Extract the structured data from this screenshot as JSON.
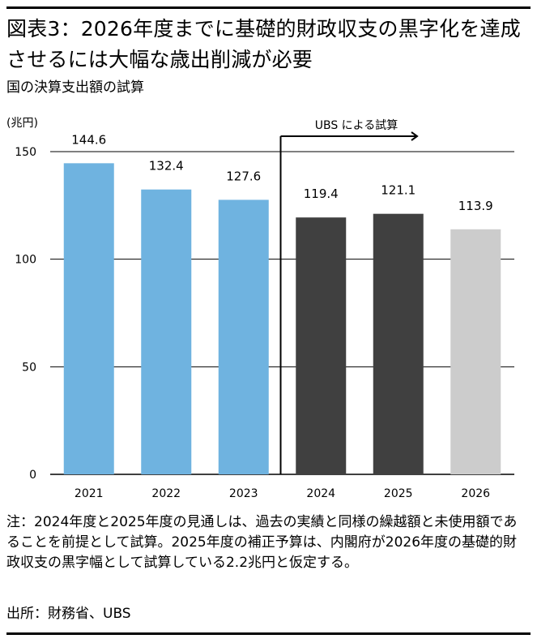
{
  "title": "図表3：2026年度までに基礎的財政収支の黒字化を達成させるには大幅な歳出削減が必要",
  "subtitle": "国の決算支出額の試算",
  "unit": "(兆円)",
  "estimate_label": "UBS による試算",
  "note": "注：2024年度と2025年度の見通しは、過去の実績と同様の繰越額と未使用額であることを前提として試算。2025年度の補正予算は、内閣府が2026年度の基礎的財政収支の黒字幅として試算している2.2兆円と仮定する。",
  "source": "出所：財務省、UBS",
  "chart_data": {
    "type": "bar",
    "categories": [
      "2021",
      "2022",
      "2023",
      "2024",
      "2025",
      "2026"
    ],
    "values": [
      144.6,
      132.4,
      127.6,
      119.4,
      121.1,
      113.9
    ],
    "value_labels": [
      "144.6",
      "132.4",
      "127.6",
      "119.4",
      "121.1",
      "113.9"
    ],
    "bar_colors": [
      "#6fb3e0",
      "#6fb3e0",
      "#6fb3e0",
      "#404040",
      "#404040",
      "#cccccc"
    ],
    "ylim": [
      0,
      150
    ],
    "yticks": [
      0,
      50,
      100,
      150
    ],
    "ytick_labels": [
      "0",
      "50",
      "100",
      "150"
    ],
    "xlabel": "",
    "ylabel": "(兆円)",
    "grid": true,
    "estimate_start_category": "2024"
  }
}
